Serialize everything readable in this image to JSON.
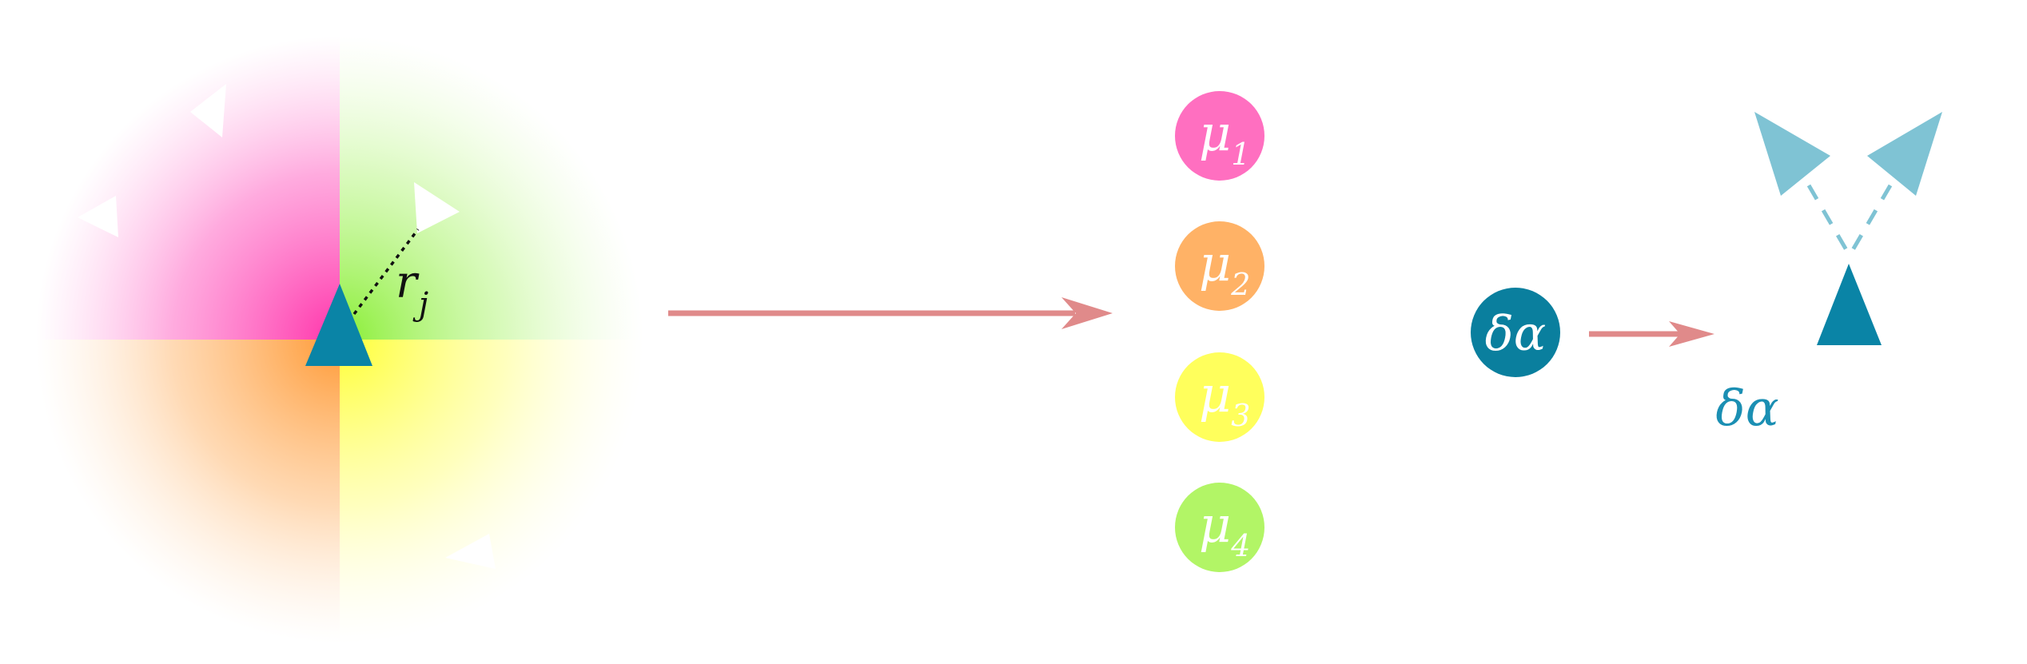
{
  "neighborhood": {
    "distance_label": {
      "symbol": "r",
      "subscript": "j"
    },
    "quadrant_colors": [
      "#ff55bb",
      "#9df55a",
      "#ff9944",
      "#ffff55"
    ],
    "center_agent_color": "#0a84a6",
    "neighbor_color": "#ffffff"
  },
  "arrow_color": "#e08a8a",
  "mu_nodes": [
    {
      "symbol": "μ",
      "subscript": "1",
      "color": "#ff6fc0"
    },
    {
      "symbol": "μ",
      "subscript": "2",
      "color": "#ffb266"
    },
    {
      "symbol": "μ",
      "subscript": "3",
      "color": "#ffff5c"
    },
    {
      "symbol": "μ",
      "subscript": "4",
      "color": "#b2f566"
    }
  ],
  "action_node": {
    "label": "δα",
    "color": "#0a7f9e"
  },
  "action_caption": {
    "label": "δα",
    "color": "#1b8fb3"
  },
  "agents_right": {
    "agent_color": "#0a84a6",
    "partner_color": "#7fc3d4"
  }
}
